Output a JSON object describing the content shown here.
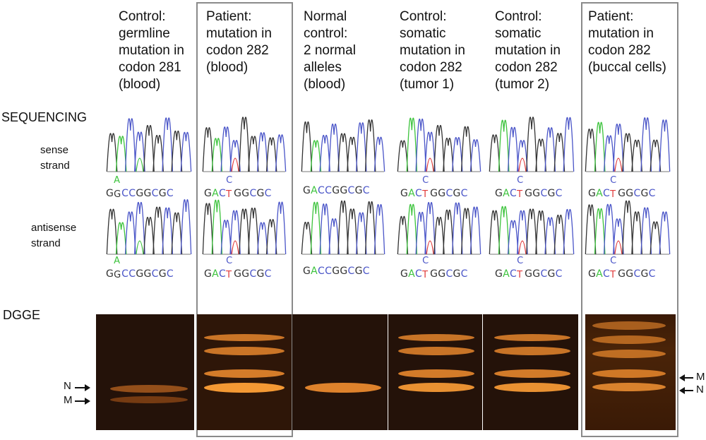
{
  "columns": [
    {
      "id": "c1",
      "header": "Control:\ngermline\nmutation in\ncodon 281\n(blood)"
    },
    {
      "id": "c2",
      "header": "Patient:\nmutation in\ncodon 282\n(blood)"
    },
    {
      "id": "c3",
      "header": "Normal\ncontrol:\n2 normal\nalleles\n(blood)"
    },
    {
      "id": "c4",
      "header": "Control:\nsomatic\nmutation in\ncodon 282\n(tumor 1)"
    },
    {
      "id": "c5",
      "header": "Control:\nsomatic\nmutation in\ncodon 282\n(tumor 2)"
    },
    {
      "id": "c6",
      "header": "Patient:\nmutation in\ncodon 282\n(buccal cells)"
    }
  ],
  "sections": {
    "sequencing": "SEQUENCING",
    "dgge": "DGGE"
  },
  "strands": {
    "sense": "sense\nstrand",
    "antisense": "antisense\nstrand"
  },
  "sequences": {
    "c1": {
      "pre": "G",
      "top": "A",
      "bot": "G",
      "post": "CCGGCGC"
    },
    "c2": {
      "pre": "GAC",
      "top": "C",
      "bot": "T",
      "post": "GGCGC"
    },
    "c3": {
      "full": "GACCGGCGC"
    },
    "c4": {
      "pre": "GAC",
      "top": "C",
      "bot": "T",
      "post": "GGCGC"
    },
    "c5": {
      "pre": "GAC",
      "top": "C",
      "bot": "T",
      "post": "GGCGC"
    },
    "c6": {
      "pre": "GAC",
      "top": "C",
      "bot": "T",
      "post": "GGCGC"
    }
  },
  "band_labels": {
    "N": "N",
    "M": "M"
  },
  "colors": {
    "G": "#333333",
    "A": "#3cc33c",
    "C": "#4a55c8",
    "T": "#e03a3a",
    "gel": "#241209",
    "band": "#ff9a2a",
    "box": "#8a8a8a"
  }
}
